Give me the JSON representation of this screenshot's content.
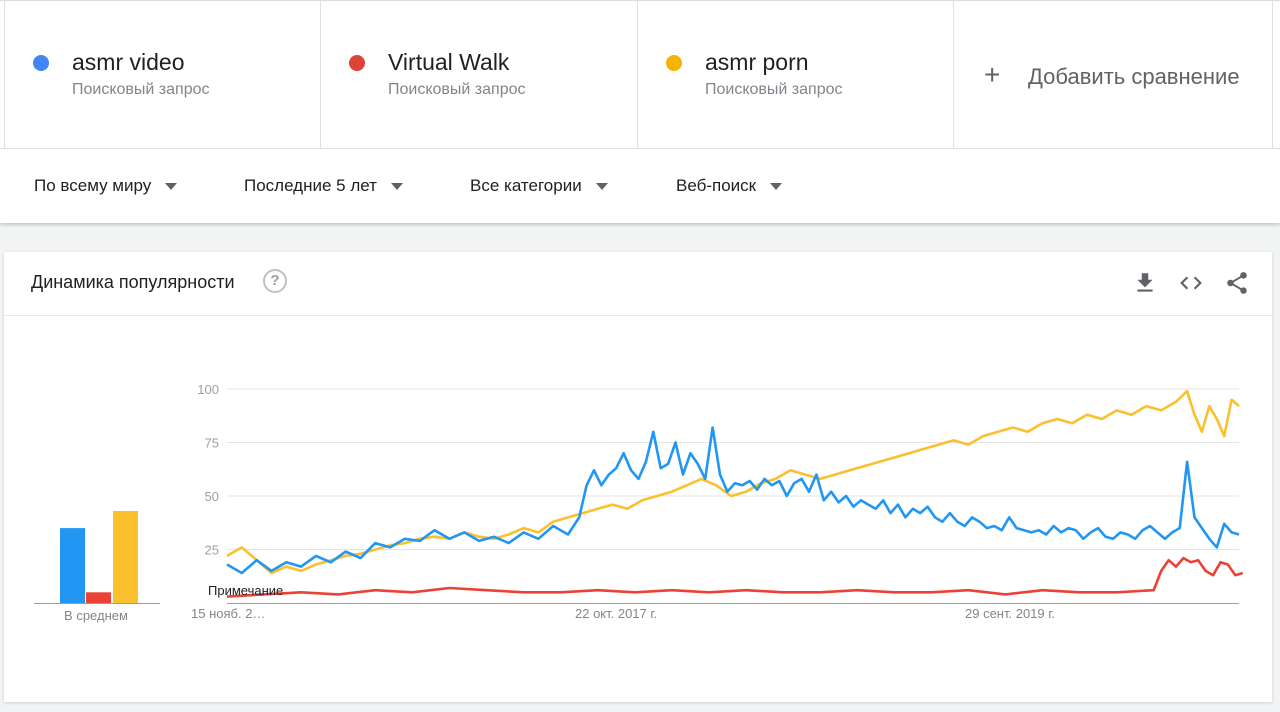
{
  "terms": [
    {
      "name": "asmr video",
      "type": "Поисковый запрос",
      "color": "#4285f4"
    },
    {
      "name": "Virtual Walk",
      "type": "Поисковый запрос",
      "color": "#db4437"
    },
    {
      "name": "asmr porn",
      "type": "Поисковый запрос",
      "color": "#f4b400"
    }
  ],
  "add_compare": {
    "plus": "+",
    "label": "Добавить сравнение"
  },
  "filters": {
    "region": "По всему миру",
    "period": "Последние 5 лет",
    "category": "Все категории",
    "search_type": "Веб-поиск"
  },
  "card": {
    "title": "Динамика популярности",
    "help": "?"
  },
  "icons": {
    "download": "download-icon",
    "embed": "embed-code-icon",
    "share": "share-icon",
    "help": "help-circle-icon"
  },
  "chart_data": {
    "type": "line",
    "ylim": [
      0,
      100
    ],
    "yticks": [
      25,
      50,
      75,
      100
    ],
    "x_labels": [
      "15 нояб. 2…",
      "22 окт. 2017 г.",
      "29 сент. 2019 г."
    ],
    "note_label": "Примечание",
    "average_label": "В среднем",
    "averages": [
      {
        "name": "asmr video",
        "value": 35,
        "color": "#2196f3"
      },
      {
        "name": "Virtual Walk",
        "value": 5,
        "color": "#ea4335"
      },
      {
        "name": "asmr porn",
        "value": 43,
        "color": "#fbc02d"
      }
    ],
    "series": [
      {
        "name": "asmr video",
        "color": "#2196f3",
        "points": [
          [
            0,
            18
          ],
          [
            8,
            14
          ],
          [
            16,
            20
          ],
          [
            24,
            15
          ],
          [
            32,
            19
          ],
          [
            40,
            17
          ],
          [
            48,
            22
          ],
          [
            56,
            19
          ],
          [
            64,
            24
          ],
          [
            72,
            21
          ],
          [
            80,
            28
          ],
          [
            88,
            26
          ],
          [
            96,
            30
          ],
          [
            104,
            29
          ],
          [
            112,
            34
          ],
          [
            120,
            30
          ],
          [
            128,
            33
          ],
          [
            136,
            29
          ],
          [
            144,
            31
          ],
          [
            152,
            28
          ],
          [
            160,
            33
          ],
          [
            168,
            30
          ],
          [
            176,
            36
          ],
          [
            184,
            32
          ],
          [
            190,
            40
          ],
          [
            194,
            55
          ],
          [
            198,
            62
          ],
          [
            202,
            55
          ],
          [
            206,
            60
          ],
          [
            210,
            63
          ],
          [
            214,
            70
          ],
          [
            218,
            62
          ],
          [
            222,
            58
          ],
          [
            226,
            66
          ],
          [
            230,
            80
          ],
          [
            234,
            63
          ],
          [
            238,
            65
          ],
          [
            242,
            75
          ],
          [
            246,
            60
          ],
          [
            250,
            70
          ],
          [
            254,
            65
          ],
          [
            258,
            58
          ],
          [
            262,
            82
          ],
          [
            266,
            60
          ],
          [
            270,
            52
          ],
          [
            274,
            56
          ],
          [
            278,
            55
          ],
          [
            282,
            57
          ],
          [
            286,
            53
          ],
          [
            290,
            58
          ],
          [
            294,
            55
          ],
          [
            298,
            57
          ],
          [
            302,
            50
          ],
          [
            306,
            56
          ],
          [
            310,
            58
          ],
          [
            314,
            52
          ],
          [
            318,
            60
          ],
          [
            322,
            48
          ],
          [
            326,
            52
          ],
          [
            330,
            47
          ],
          [
            334,
            50
          ],
          [
            338,
            45
          ],
          [
            342,
            48
          ],
          [
            346,
            46
          ],
          [
            350,
            44
          ],
          [
            354,
            48
          ],
          [
            358,
            42
          ],
          [
            362,
            46
          ],
          [
            366,
            40
          ],
          [
            370,
            44
          ],
          [
            374,
            42
          ],
          [
            378,
            45
          ],
          [
            382,
            40
          ],
          [
            386,
            38
          ],
          [
            390,
            42
          ],
          [
            394,
            38
          ],
          [
            398,
            36
          ],
          [
            402,
            40
          ],
          [
            406,
            38
          ],
          [
            410,
            35
          ],
          [
            414,
            36
          ],
          [
            418,
            34
          ],
          [
            422,
            40
          ],
          [
            426,
            35
          ],
          [
            430,
            34
          ],
          [
            434,
            33
          ],
          [
            438,
            34
          ],
          [
            442,
            32
          ],
          [
            446,
            36
          ],
          [
            450,
            33
          ],
          [
            454,
            35
          ],
          [
            458,
            34
          ],
          [
            462,
            30
          ],
          [
            466,
            33
          ],
          [
            470,
            35
          ],
          [
            474,
            31
          ],
          [
            478,
            30
          ],
          [
            482,
            33
          ],
          [
            486,
            32
          ],
          [
            490,
            30
          ],
          [
            494,
            34
          ],
          [
            498,
            36
          ],
          [
            502,
            33
          ],
          [
            506,
            30
          ],
          [
            510,
            33
          ],
          [
            514,
            35
          ],
          [
            518,
            66
          ],
          [
            522,
            40
          ],
          [
            526,
            35
          ],
          [
            530,
            30
          ],
          [
            534,
            26
          ],
          [
            538,
            37
          ],
          [
            542,
            33
          ],
          [
            546,
            32
          ]
        ]
      },
      {
        "name": "Virtual Walk",
        "color": "#ea4335",
        "points": [
          [
            0,
            3
          ],
          [
            20,
            4
          ],
          [
            40,
            5
          ],
          [
            60,
            4
          ],
          [
            80,
            6
          ],
          [
            100,
            5
          ],
          [
            120,
            7
          ],
          [
            140,
            6
          ],
          [
            160,
            5
          ],
          [
            180,
            5
          ],
          [
            200,
            6
          ],
          [
            220,
            5
          ],
          [
            240,
            6
          ],
          [
            260,
            5
          ],
          [
            280,
            6
          ],
          [
            300,
            5
          ],
          [
            320,
            5
          ],
          [
            340,
            6
          ],
          [
            360,
            5
          ],
          [
            380,
            5
          ],
          [
            400,
            6
          ],
          [
            420,
            4
          ],
          [
            440,
            6
          ],
          [
            460,
            5
          ],
          [
            480,
            5
          ],
          [
            500,
            6
          ],
          [
            504,
            15
          ],
          [
            508,
            20
          ],
          [
            512,
            17
          ],
          [
            516,
            21
          ],
          [
            520,
            19
          ],
          [
            524,
            20
          ],
          [
            528,
            15
          ],
          [
            532,
            13
          ],
          [
            536,
            19
          ],
          [
            540,
            18
          ],
          [
            544,
            13
          ],
          [
            548,
            14
          ]
        ]
      },
      {
        "name": "asmr porn",
        "color": "#fbc02d",
        "points": [
          [
            0,
            22
          ],
          [
            8,
            26
          ],
          [
            16,
            20
          ],
          [
            24,
            14
          ],
          [
            32,
            17
          ],
          [
            40,
            15
          ],
          [
            48,
            18
          ],
          [
            56,
            20
          ],
          [
            64,
            22
          ],
          [
            72,
            23
          ],
          [
            80,
            25
          ],
          [
            88,
            27
          ],
          [
            96,
            28
          ],
          [
            104,
            30
          ],
          [
            112,
            31
          ],
          [
            120,
            30
          ],
          [
            128,
            33
          ],
          [
            136,
            31
          ],
          [
            144,
            30
          ],
          [
            152,
            32
          ],
          [
            160,
            35
          ],
          [
            168,
            33
          ],
          [
            176,
            38
          ],
          [
            184,
            40
          ],
          [
            192,
            42
          ],
          [
            200,
            44
          ],
          [
            208,
            46
          ],
          [
            216,
            44
          ],
          [
            224,
            48
          ],
          [
            232,
            50
          ],
          [
            240,
            52
          ],
          [
            248,
            55
          ],
          [
            256,
            58
          ],
          [
            264,
            55
          ],
          [
            272,
            50
          ],
          [
            280,
            52
          ],
          [
            288,
            56
          ],
          [
            296,
            58
          ],
          [
            304,
            62
          ],
          [
            312,
            60
          ],
          [
            320,
            58
          ],
          [
            328,
            60
          ],
          [
            336,
            62
          ],
          [
            344,
            64
          ],
          [
            352,
            66
          ],
          [
            360,
            68
          ],
          [
            368,
            70
          ],
          [
            376,
            72
          ],
          [
            384,
            74
          ],
          [
            392,
            76
          ],
          [
            400,
            74
          ],
          [
            408,
            78
          ],
          [
            416,
            80
          ],
          [
            424,
            82
          ],
          [
            432,
            80
          ],
          [
            440,
            84
          ],
          [
            448,
            86
          ],
          [
            456,
            84
          ],
          [
            464,
            88
          ],
          [
            472,
            86
          ],
          [
            480,
            90
          ],
          [
            488,
            88
          ],
          [
            496,
            92
          ],
          [
            504,
            90
          ],
          [
            512,
            94
          ],
          [
            518,
            99
          ],
          [
            522,
            88
          ],
          [
            526,
            80
          ],
          [
            530,
            92
          ],
          [
            534,
            86
          ],
          [
            538,
            78
          ],
          [
            542,
            95
          ],
          [
            546,
            92
          ]
        ]
      }
    ]
  }
}
